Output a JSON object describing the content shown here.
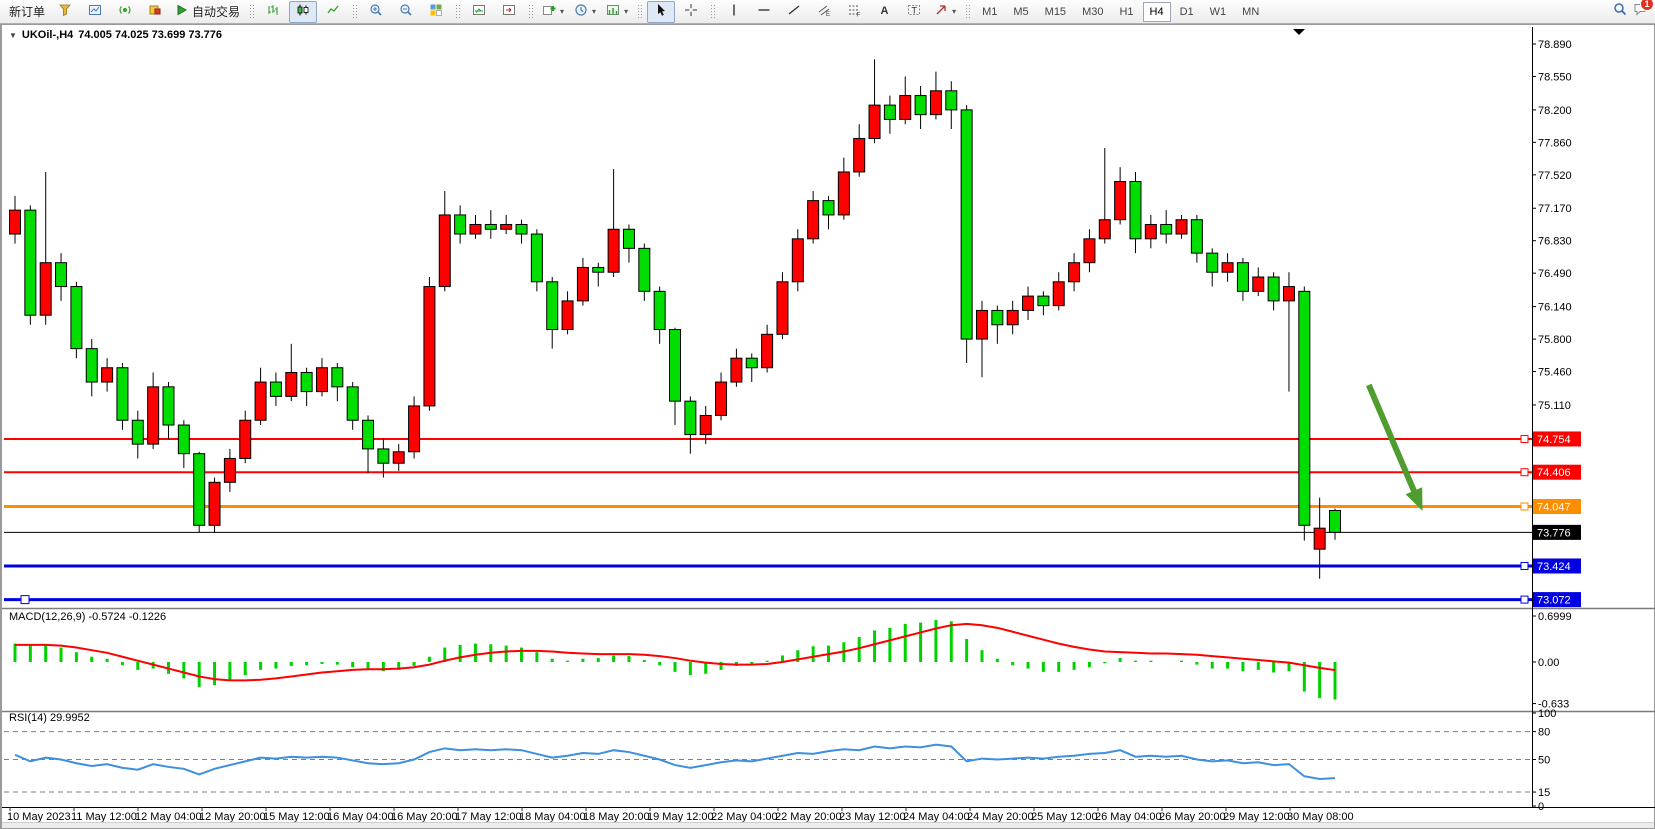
{
  "window": {
    "caret": "▼",
    "title": "UKOil-,H4",
    "quotes": "74.005 74.025 73.699 73.776"
  },
  "toolbar": {
    "groups": [
      {
        "items": [
          {
            "name": "new-order-button",
            "label": "新订单"
          },
          {
            "name": "funnel-button",
            "icon": "funnel"
          },
          {
            "name": "new-chart-window-button",
            "icon": "chart-window"
          },
          {
            "name": "signals-button",
            "icon": "signal"
          },
          {
            "name": "market-watch-button",
            "icon": "market-watch"
          },
          {
            "name": "auto-trading-button",
            "icon": "autotrade",
            "label": "自动交易"
          }
        ]
      },
      {
        "grip": true,
        "items": [
          {
            "name": "bar-chart-button",
            "icon": "bars"
          },
          {
            "name": "candlestick-chart-button",
            "icon": "candles",
            "active": true
          },
          {
            "name": "line-chart-button",
            "icon": "line"
          }
        ]
      },
      {
        "items": [
          {
            "name": "zoom-in-button",
            "icon": "zoom-in"
          },
          {
            "name": "zoom-out-button",
            "icon": "zoom-out"
          },
          {
            "name": "tile-windows-button",
            "icon": "tile"
          }
        ]
      },
      {
        "items": [
          {
            "name": "indicator-window-button",
            "icon": "ind-window"
          },
          {
            "name": "chart-shift-button",
            "icon": "ind-shift"
          }
        ]
      },
      {
        "items": [
          {
            "name": "add-indicator-button",
            "icon": "add-chart",
            "dd": true
          },
          {
            "name": "period-button",
            "icon": "clock",
            "dd": true
          },
          {
            "name": "template-button",
            "icon": "chart-settings",
            "dd": true
          }
        ]
      },
      {
        "grip": true,
        "items": [
          {
            "name": "cursor-button",
            "icon": "cursor",
            "active": true
          },
          {
            "name": "crosshair-button",
            "icon": "crosshair"
          }
        ]
      },
      {
        "items": [
          {
            "name": "vertical-line-button",
            "icon": "vline"
          },
          {
            "name": "horizontal-line-button",
            "icon": "hline"
          },
          {
            "name": "trendline-button",
            "icon": "trendline"
          },
          {
            "name": "equidistant-channel-button",
            "icon": "channel"
          },
          {
            "name": "fibonacci-button",
            "icon": "fibo"
          },
          {
            "name": "text-button",
            "icon": "text-a"
          },
          {
            "name": "text-label-button",
            "icon": "text-label"
          },
          {
            "name": "arrows-button",
            "icon": "arrows",
            "dd": true
          }
        ]
      }
    ],
    "timeframes": {
      "items": [
        "M1",
        "M5",
        "M15",
        "M30",
        "H1",
        "H4",
        "D1",
        "W1",
        "MN"
      ],
      "active": "H4"
    },
    "right": [
      {
        "name": "search-button",
        "icon": "magnifier"
      },
      {
        "name": "chat-button",
        "icon": "chat",
        "badge": "1"
      }
    ]
  },
  "chart_data": {
    "type": "candlestick",
    "symbol": "UKOil-",
    "timeframe": "H4",
    "ohlc_display": {
      "open": "74.005",
      "high": "74.025",
      "low": "73.699",
      "close": "73.776"
    },
    "colors": {
      "bull_candle": "#ff0000",
      "bear_candle": "#00dd00",
      "candle_border": "#000000",
      "macd_hist": "#00d200",
      "macd_signal": "#ff0000",
      "rsi_line": "#3d8fe0",
      "arrow": "#4f9d2f"
    },
    "y_axis": {
      "ticks": [
        "78.890",
        "78.550",
        "78.200",
        "77.860",
        "77.520",
        "77.170",
        "76.830",
        "76.490",
        "76.140",
        "75.800",
        "75.460",
        "75.110"
      ],
      "min": 73.005,
      "max": 79.026
    },
    "x_labels": [
      "10 May 2023",
      "11 May 12:00",
      "12 May 04:00",
      "12 May 20:00",
      "15 May 12:00",
      "16 May 04:00",
      "16 May 20:00",
      "17 May 12:00",
      "18 May 04:00",
      "18 May 20:00",
      "19 May 12:00",
      "22 May 04:00",
      "22 May 20:00",
      "23 May 12:00",
      "24 May 04:00",
      "24 May 20:00",
      "25 May 12:00",
      "26 May 04:00",
      "26 May 20:00",
      "29 May 12:00",
      "30 May 08:00"
    ],
    "candles": [
      [
        76.9,
        77.3,
        76.8,
        77.15
      ],
      [
        77.15,
        77.2,
        75.95,
        76.05
      ],
      [
        76.05,
        77.55,
        75.95,
        76.6
      ],
      [
        76.6,
        76.7,
        76.2,
        76.35
      ],
      [
        76.35,
        76.4,
        75.6,
        75.7
      ],
      [
        75.7,
        75.8,
        75.2,
        75.35
      ],
      [
        75.35,
        75.6,
        75.25,
        75.5
      ],
      [
        75.5,
        75.55,
        74.85,
        74.95
      ],
      [
        74.95,
        75.05,
        74.55,
        74.7
      ],
      [
        74.7,
        75.45,
        74.65,
        75.3
      ],
      [
        75.3,
        75.35,
        74.75,
        74.9
      ],
      [
        74.9,
        74.95,
        74.45,
        74.6
      ],
      [
        74.6,
        74.62,
        73.78,
        73.85
      ],
      [
        73.85,
        74.35,
        73.78,
        74.3
      ],
      [
        74.3,
        74.65,
        74.2,
        74.55
      ],
      [
        74.55,
        75.05,
        74.5,
        74.95
      ],
      [
        74.95,
        75.5,
        74.9,
        75.35
      ],
      [
        75.35,
        75.45,
        75.1,
        75.2
      ],
      [
        75.2,
        75.75,
        75.15,
        75.45
      ],
      [
        75.45,
        75.5,
        75.1,
        75.25
      ],
      [
        75.25,
        75.6,
        75.2,
        75.5
      ],
      [
        75.5,
        75.55,
        75.15,
        75.3
      ],
      [
        75.3,
        75.35,
        74.85,
        74.95
      ],
      [
        74.95,
        75.0,
        74.4,
        74.65
      ],
      [
        74.65,
        74.75,
        74.35,
        74.5
      ],
      [
        74.5,
        74.7,
        74.42,
        74.62
      ],
      [
        74.62,
        75.2,
        74.55,
        75.1
      ],
      [
        75.1,
        76.45,
        75.05,
        76.35
      ],
      [
        76.35,
        77.35,
        76.3,
        77.1
      ],
      [
        77.1,
        77.2,
        76.8,
        76.9
      ],
      [
        76.9,
        77.1,
        76.85,
        77.0
      ],
      [
        77.0,
        77.15,
        76.85,
        76.95
      ],
      [
        76.95,
        77.1,
        76.9,
        77.0
      ],
      [
        77.0,
        77.05,
        76.8,
        76.9
      ],
      [
        76.9,
        76.95,
        76.3,
        76.4
      ],
      [
        76.4,
        76.45,
        75.7,
        75.9
      ],
      [
        75.9,
        76.3,
        75.85,
        76.2
      ],
      [
        76.2,
        76.65,
        76.15,
        76.55
      ],
      [
        76.55,
        76.6,
        76.35,
        76.5
      ],
      [
        76.5,
        77.58,
        76.45,
        76.95
      ],
      [
        76.95,
        77.0,
        76.6,
        76.75
      ],
      [
        76.75,
        76.8,
        76.2,
        76.3
      ],
      [
        76.3,
        76.35,
        75.75,
        75.9
      ],
      [
        75.9,
        75.92,
        74.9,
        75.15
      ],
      [
        75.15,
        75.2,
        74.6,
        74.8
      ],
      [
        74.8,
        75.1,
        74.7,
        75.0
      ],
      [
        75.0,
        75.45,
        74.95,
        75.35
      ],
      [
        75.35,
        75.7,
        75.3,
        75.6
      ],
      [
        75.6,
        75.65,
        75.35,
        75.5
      ],
      [
        75.5,
        75.95,
        75.45,
        75.85
      ],
      [
        75.85,
        76.5,
        75.8,
        76.4
      ],
      [
        76.4,
        76.95,
        76.3,
        76.85
      ],
      [
        76.85,
        77.35,
        76.8,
        77.25
      ],
      [
        77.25,
        77.3,
        76.95,
        77.1
      ],
      [
        77.1,
        77.7,
        77.05,
        77.55
      ],
      [
        77.55,
        78.05,
        77.5,
        77.9
      ],
      [
        77.9,
        78.73,
        77.85,
        78.25
      ],
      [
        78.25,
        78.35,
        77.95,
        78.1
      ],
      [
        78.1,
        78.55,
        78.05,
        78.35
      ],
      [
        78.35,
        78.45,
        78.0,
        78.15
      ],
      [
        78.15,
        78.6,
        78.1,
        78.4
      ],
      [
        78.4,
        78.5,
        78.0,
        78.2
      ],
      [
        78.2,
        78.25,
        75.55,
        75.8
      ],
      [
        75.8,
        76.2,
        75.4,
        76.1
      ],
      [
        76.1,
        76.15,
        75.75,
        75.95
      ],
      [
        75.95,
        76.2,
        75.85,
        76.1
      ],
      [
        76.1,
        76.35,
        76.0,
        76.25
      ],
      [
        76.25,
        76.3,
        76.05,
        76.15
      ],
      [
        76.15,
        76.5,
        76.1,
        76.4
      ],
      [
        76.4,
        76.7,
        76.3,
        76.6
      ],
      [
        76.6,
        76.95,
        76.5,
        76.85
      ],
      [
        76.85,
        77.8,
        76.8,
        77.05
      ],
      [
        77.05,
        77.6,
        77.0,
        77.45
      ],
      [
        77.45,
        77.55,
        76.7,
        76.85
      ],
      [
        76.85,
        77.1,
        76.75,
        77.0
      ],
      [
        77.0,
        77.15,
        76.8,
        76.9
      ],
      [
        76.9,
        77.1,
        76.85,
        77.05
      ],
      [
        77.05,
        77.1,
        76.6,
        76.7
      ],
      [
        76.7,
        76.75,
        76.35,
        76.5
      ],
      [
        76.5,
        76.7,
        76.4,
        76.6
      ],
      [
        76.6,
        76.65,
        76.2,
        76.3
      ],
      [
        76.3,
        76.55,
        76.25,
        76.45
      ],
      [
        76.45,
        76.5,
        76.1,
        76.2
      ],
      [
        76.2,
        76.5,
        75.25,
        76.35
      ],
      [
        76.3,
        76.35,
        73.69,
        73.85
      ],
      [
        73.6,
        74.14,
        73.29,
        73.82
      ],
      [
        74.005,
        74.025,
        73.699,
        73.776
      ]
    ],
    "hlines": [
      {
        "price": 74.754,
        "label": "74.754",
        "color": "#ff0000",
        "width": 2,
        "right_handle": true
      },
      {
        "price": 74.406,
        "label": "74.406",
        "color": "#ff0000",
        "width": 2,
        "right_handle": true
      },
      {
        "price": 74.047,
        "label": "74.047",
        "color": "#ff8d00",
        "width": 3,
        "right_handle": true
      },
      {
        "price": 73.776,
        "label": "73.776",
        "color": "#000000",
        "width": 1,
        "bid_line": true
      },
      {
        "price": 73.424,
        "label": "73.424",
        "color": "#0000e0",
        "width": 3,
        "right_handle": true
      },
      {
        "price": 73.072,
        "label": "73.072",
        "color": "#0000e0",
        "width": 3,
        "right_handle": true,
        "left_handle": true
      }
    ],
    "annotations": {
      "arrow": {
        "from_bar": 88.2,
        "from_price": 75.32,
        "to_bar": 91.7,
        "to_price": 74.0,
        "color": "#4f9d2f"
      }
    },
    "macd": {
      "label_full": "MACD(12,26,9) -0.5724 -0.1226",
      "name": "MACD(12,26,9)",
      "main_value": "-0.5724",
      "signal_value": "-0.1226",
      "axis": [
        {
          "text": "0.6999",
          "value": 0.6999
        },
        {
          "text": "0.00",
          "value": 0
        },
        {
          "text": "-0.633",
          "value": -0.633
        }
      ],
      "histogram": [
        0.28,
        0.27,
        0.26,
        0.22,
        0.15,
        0.08,
        0.05,
        -0.05,
        -0.12,
        -0.1,
        -0.18,
        -0.25,
        -0.38,
        -0.35,
        -0.28,
        -0.2,
        -0.12,
        -0.1,
        -0.06,
        -0.05,
        -0.03,
        -0.04,
        -0.08,
        -0.12,
        -0.14,
        -0.12,
        -0.06,
        0.08,
        0.22,
        0.26,
        0.28,
        0.27,
        0.25,
        0.22,
        0.15,
        0.05,
        0.02,
        0.05,
        0.06,
        0.1,
        0.09,
        0.03,
        -0.05,
        -0.15,
        -0.2,
        -0.18,
        -0.12,
        -0.06,
        -0.04,
        0.02,
        0.1,
        0.18,
        0.24,
        0.25,
        0.3,
        0.38,
        0.48,
        0.52,
        0.58,
        0.6,
        0.64,
        0.62,
        0.35,
        0.18,
        0.05,
        -0.05,
        -0.1,
        -0.15,
        -0.15,
        -0.12,
        -0.08,
        -0.02,
        0.06,
        0.02,
        0.02,
        0.0,
        0.02,
        -0.04,
        -0.1,
        -0.1,
        -0.14,
        -0.12,
        -0.16,
        -0.14,
        -0.45,
        -0.55,
        -0.5724
      ],
      "signal": [
        0.26,
        0.26,
        0.26,
        0.25,
        0.22,
        0.18,
        0.14,
        0.08,
        0.02,
        -0.04,
        -0.1,
        -0.16,
        -0.22,
        -0.26,
        -0.28,
        -0.28,
        -0.27,
        -0.25,
        -0.22,
        -0.19,
        -0.16,
        -0.14,
        -0.12,
        -0.11,
        -0.11,
        -0.1,
        -0.08,
        -0.04,
        0.02,
        0.07,
        0.11,
        0.14,
        0.16,
        0.17,
        0.17,
        0.16,
        0.14,
        0.13,
        0.12,
        0.12,
        0.12,
        0.11,
        0.09,
        0.06,
        0.02,
        -0.01,
        -0.03,
        -0.04,
        -0.04,
        -0.03,
        0.0,
        0.04,
        0.08,
        0.12,
        0.16,
        0.21,
        0.27,
        0.33,
        0.39,
        0.45,
        0.51,
        0.56,
        0.58,
        0.56,
        0.52,
        0.46,
        0.4,
        0.34,
        0.28,
        0.23,
        0.19,
        0.16,
        0.15,
        0.14,
        0.13,
        0.13,
        0.12,
        0.11,
        0.09,
        0.07,
        0.05,
        0.03,
        0.01,
        -0.01,
        -0.05,
        -0.09,
        -0.1226
      ]
    },
    "rsi": {
      "label_full": "RSI(14) 29.9952",
      "name": "RSI(14)",
      "value": "29.9952",
      "axis": [
        {
          "text": "100",
          "value": 100
        },
        {
          "text": "80",
          "value": 80
        },
        {
          "text": "50",
          "value": 50
        },
        {
          "text": "15",
          "value": 15
        },
        {
          "text": "0",
          "value": 0
        }
      ],
      "levels": [
        80,
        50,
        15
      ],
      "values": [
        55,
        48,
        52,
        50,
        46,
        43,
        45,
        41,
        39,
        45,
        42,
        40,
        34,
        40,
        44,
        48,
        52,
        51,
        53,
        52,
        53,
        52,
        49,
        46,
        45,
        46,
        50,
        58,
        62,
        60,
        61,
        60,
        61,
        60,
        56,
        52,
        54,
        57,
        56,
        60,
        58,
        54,
        50,
        44,
        41,
        44,
        47,
        49,
        48,
        51,
        54,
        57,
        56,
        59,
        61,
        60,
        64,
        62,
        64,
        63,
        66,
        64,
        48,
        51,
        50,
        51,
        52,
        51,
        53,
        54,
        56,
        57,
        60,
        53,
        54,
        53,
        54,
        50,
        48,
        49,
        46,
        47,
        44,
        45,
        32,
        29,
        29.9952
      ]
    }
  }
}
